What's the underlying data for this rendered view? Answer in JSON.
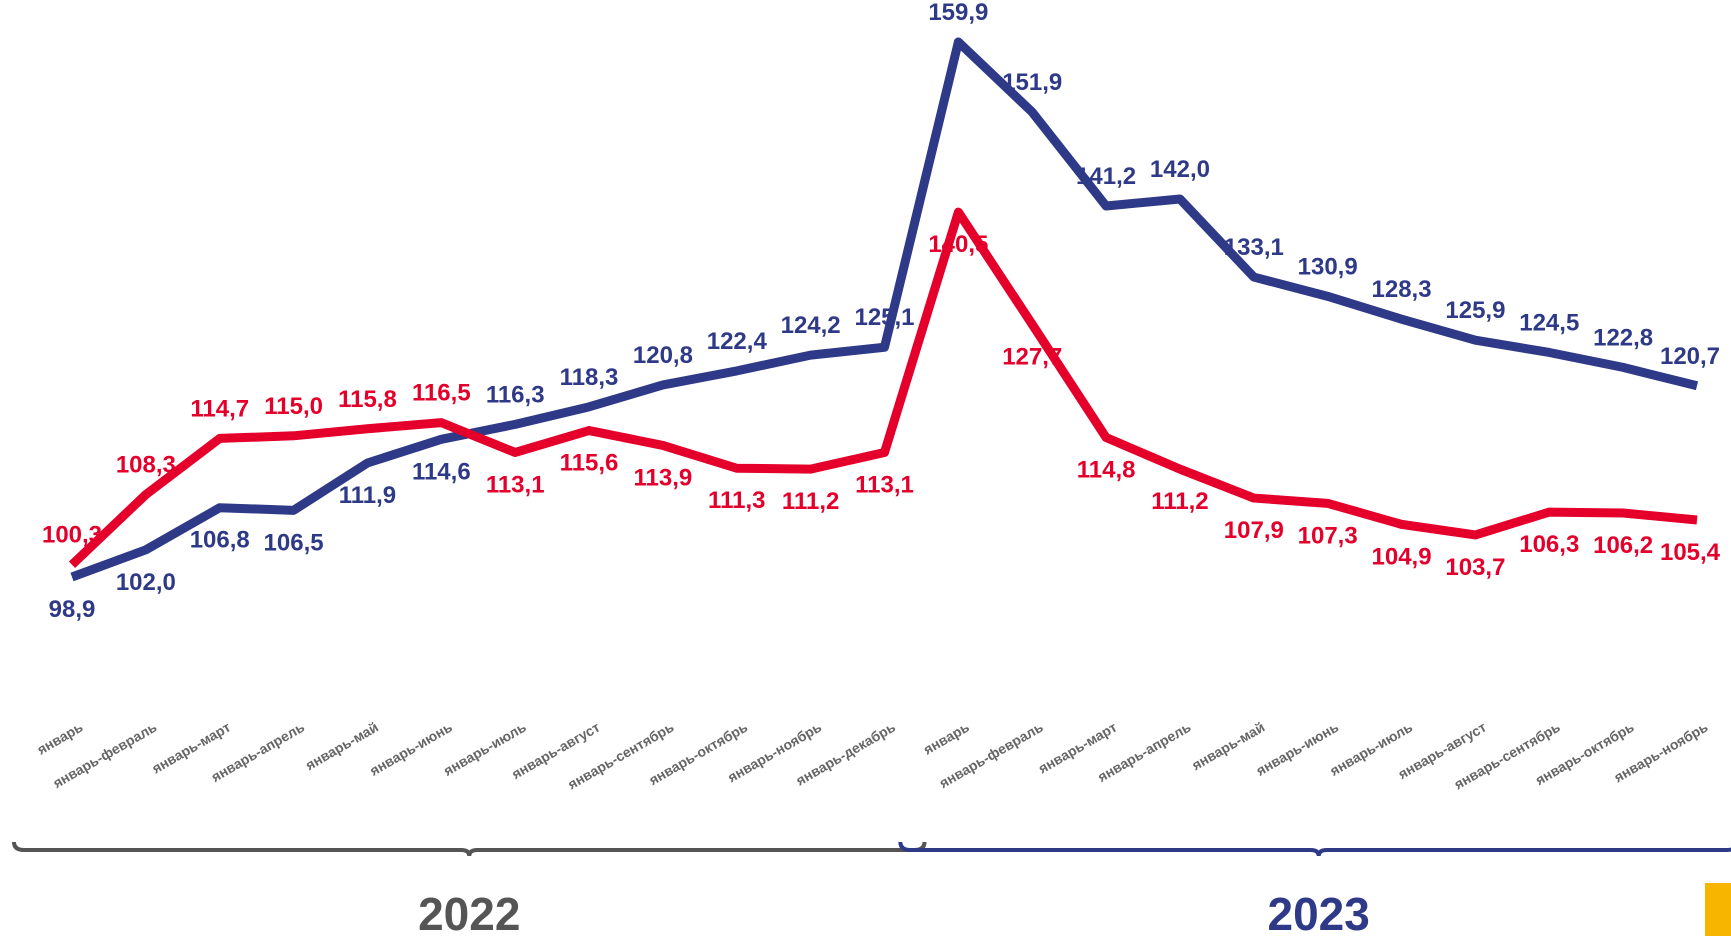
{
  "chart_data": {
    "type": "line",
    "categories": [
      "январь",
      "январь-февраль",
      "январь-март",
      "январь-апрель",
      "январь-май",
      "январь-июнь",
      "январь-июль",
      "январь-август",
      "январь-сентябрь",
      "январь-октябрь",
      "январь-ноябрь",
      "январь-декабрь",
      "январь",
      "январь-февраль",
      "январь-март",
      "январь-апрель",
      "январь-май",
      "январь-июнь",
      "январь-июль",
      "январь-август",
      "январь-сентябрь",
      "январь-октябрь",
      "январь-ноябрь"
    ],
    "groups": [
      "2022",
      "2023"
    ],
    "series": [
      {
        "color": "#2e3a87",
        "values": [
          98.9,
          102.0,
          106.8,
          106.5,
          111.9,
          114.6,
          116.3,
          118.3,
          120.8,
          122.4,
          124.2,
          125.1,
          159.9,
          151.9,
          141.2,
          142.0,
          133.1,
          130.9,
          128.3,
          125.9,
          124.5,
          122.8,
          120.7
        ],
        "value_labels": [
          "98,9",
          "102,0",
          "106,8",
          "106,5",
          "111,9",
          "114,6",
          "116,3",
          "118,3",
          "120,8",
          "122,4",
          "124,2",
          "125,1",
          "159,9",
          "151,9",
          "141,2",
          "142,0",
          "133,1",
          "130,9",
          "128,3",
          "125,9",
          "124,5",
          "122,8",
          "120,7"
        ]
      },
      {
        "color": "#e4002b",
        "values": [
          100.3,
          108.3,
          114.7,
          115.0,
          115.8,
          116.5,
          113.1,
          115.6,
          113.9,
          111.3,
          111.2,
          113.1,
          140.5,
          127.7,
          114.8,
          111.2,
          107.9,
          107.3,
          104.9,
          103.7,
          106.3,
          106.2,
          105.4
        ],
        "value_labels": [
          "100,3",
          "108,3",
          "114,7",
          "115,0",
          "115,8",
          "116,5",
          "113,1",
          "115,6",
          "113,9",
          "111,3",
          "111,2",
          "113,1",
          "140,5",
          "127,7",
          "114,8",
          "111,2",
          "107,9",
          "107,3",
          "104,9",
          "103,7",
          "106,3",
          "106,2",
          "105,4"
        ]
      }
    ]
  }
}
